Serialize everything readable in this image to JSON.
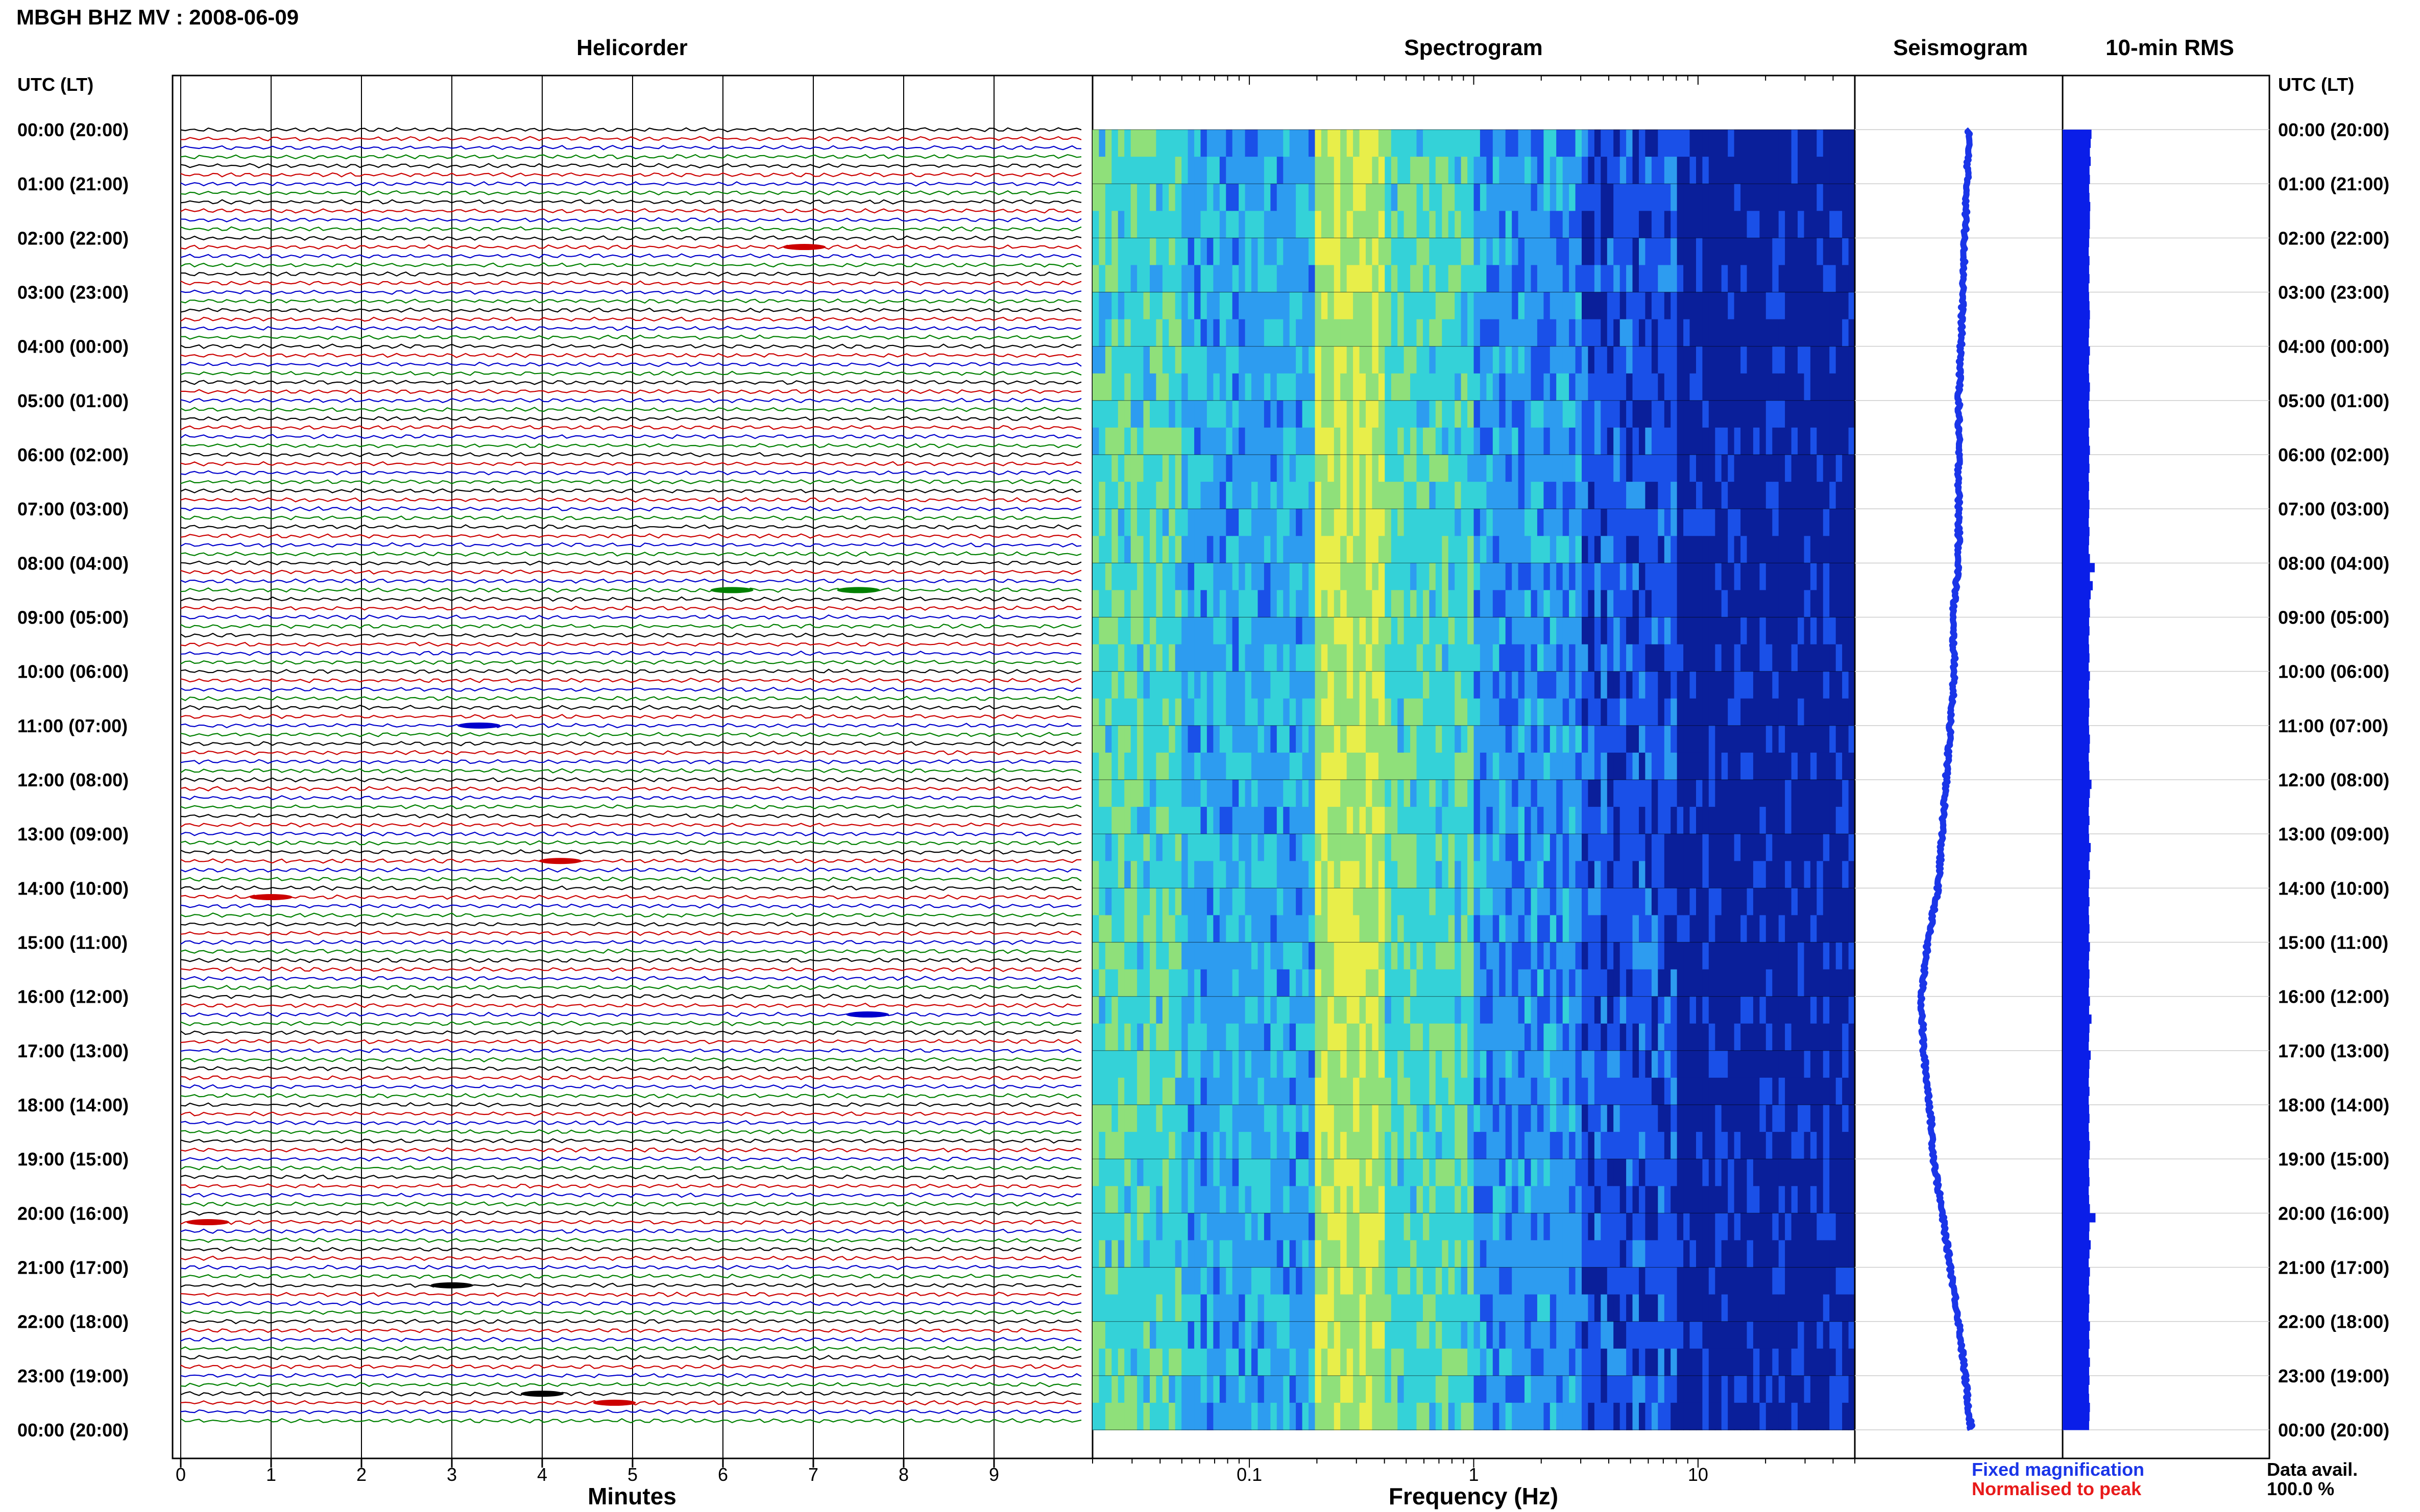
{
  "chart_data": {
    "type": "heatmap",
    "title": "MBGH BHZ MV : 2008-06-09",
    "left_axis_header": "UTC (LT)",
    "right_axis_header": "UTC (LT)",
    "time_labels": [
      "00:00 (20:00)",
      "01:00 (21:00)",
      "02:00 (22:00)",
      "03:00 (23:00)",
      "04:00 (00:00)",
      "05:00 (01:00)",
      "06:00 (02:00)",
      "07:00 (03:00)",
      "08:00 (04:00)",
      "09:00 (05:00)",
      "10:00 (06:00)",
      "11:00 (07:00)",
      "12:00 (08:00)",
      "13:00 (09:00)",
      "14:00 (10:00)",
      "15:00 (11:00)",
      "16:00 (12:00)",
      "17:00 (13:00)",
      "18:00 (14:00)",
      "19:00 (15:00)",
      "20:00 (16:00)",
      "21:00 (17:00)",
      "22:00 (18:00)",
      "23:00 (19:00)",
      "00:00 (20:00)"
    ],
    "panels": {
      "helicorder": {
        "title": "Helicorder",
        "xlabel": "Minutes",
        "xticks": [
          "0",
          "1",
          "2",
          "3",
          "4",
          "5",
          "6",
          "7",
          "8",
          "9"
        ],
        "xlim": [
          0,
          10
        ],
        "trace_colors": [
          "#000000",
          "#cc0000",
          "#0000cc",
          "#008000"
        ],
        "traces_per_hour": 6,
        "events": [
          {
            "hour": 2.1,
            "minute": 6.9
          },
          {
            "hour": 8.5,
            "minute": 6.1
          },
          {
            "hour": 8.5,
            "minute": 7.5
          },
          {
            "hour": 11.0,
            "minute": 3.3
          },
          {
            "hour": 13.5,
            "minute": 4.2
          },
          {
            "hour": 14.2,
            "minute": 1.0
          },
          {
            "hour": 16.3,
            "minute": 7.6
          },
          {
            "hour": 20.1,
            "minute": 0.3
          },
          {
            "hour": 21.3,
            "minute": 3.0
          },
          {
            "hour": 23.3,
            "minute": 4.0
          },
          {
            "hour": 23.5,
            "minute": 4.8
          }
        ]
      },
      "spectrogram": {
        "title": "Spectrogram",
        "xlabel": "Frequency (Hz)",
        "xscale": "log",
        "xlim": [
          0.02,
          50
        ],
        "xticks": [
          "0.1",
          "1",
          "10"
        ],
        "colormap": [
          "#0a1f9a",
          "#1a50e8",
          "#2d9cf0",
          "#34d2d8",
          "#8fe07a",
          "#e8ee4a"
        ]
      },
      "seismogram": {
        "title": "Seismogram",
        "color": "#1a35e8",
        "x_offset": [
          0.55,
          0.54,
          0.53,
          0.52,
          0.51,
          0.5,
          0.5,
          0.5,
          0.5,
          0.47,
          0.48,
          0.46,
          0.44,
          0.42,
          0.4,
          0.35,
          0.32,
          0.33,
          0.36,
          0.38,
          0.42,
          0.46,
          0.5,
          0.53,
          0.56
        ]
      },
      "rms": {
        "title": "10-min RMS",
        "color": "#0a1ee8",
        "values": [
          0.62,
          0.6,
          0.58,
          0.6,
          0.57,
          0.58,
          0.56,
          0.57,
          0.59,
          0.58,
          0.58,
          0.57,
          0.56,
          0.55,
          0.57,
          0.56,
          0.57,
          0.55,
          0.56,
          0.57,
          0.58,
          0.57,
          0.56,
          0.55,
          0.58,
          0.56,
          0.55,
          0.56,
          0.58,
          0.57,
          0.55,
          0.56,
          0.57,
          0.55,
          0.56,
          0.58,
          0.56,
          0.57,
          0.55,
          0.56,
          0.55,
          0.57,
          0.56,
          0.55,
          0.57,
          0.56,
          0.55,
          0.58,
          0.7,
          0.58,
          0.65,
          0.6,
          0.57,
          0.58,
          0.56,
          0.57,
          0.55,
          0.56,
          0.57,
          0.55,
          0.58,
          0.56,
          0.55,
          0.57,
          0.56,
          0.55,
          0.56,
          0.58,
          0.57,
          0.55,
          0.56,
          0.57,
          0.62,
          0.58,
          0.56,
          0.55,
          0.57,
          0.55,
          0.56,
          0.6,
          0.57,
          0.55,
          0.58,
          0.56,
          0.55,
          0.57,
          0.55,
          0.56,
          0.57,
          0.55,
          0.58,
          0.56,
          0.55,
          0.57,
          0.56,
          0.55,
          0.58,
          0.56,
          0.62,
          0.57,
          0.56,
          0.55,
          0.6,
          0.57,
          0.56,
          0.55,
          0.57,
          0.55,
          0.56,
          0.57,
          0.55,
          0.56,
          0.58,
          0.57,
          0.55,
          0.56,
          0.57,
          0.55,
          0.56,
          0.58,
          0.72,
          0.57,
          0.56,
          0.6,
          0.57,
          0.55,
          0.58,
          0.56,
          0.55,
          0.57,
          0.56,
          0.55,
          0.58,
          0.56,
          0.57,
          0.55,
          0.58,
          0.56,
          0.57,
          0.55,
          0.56,
          0.58,
          0.57,
          0.56
        ]
      }
    },
    "legend": {
      "fixed": {
        "label": "Fixed magnification",
        "color": "#1a35e8"
      },
      "normalised": {
        "label": "Normalised to peak",
        "color": "#e81a1a"
      }
    },
    "data_avail": {
      "label": "Data avail.",
      "value": "100.0 %"
    }
  }
}
